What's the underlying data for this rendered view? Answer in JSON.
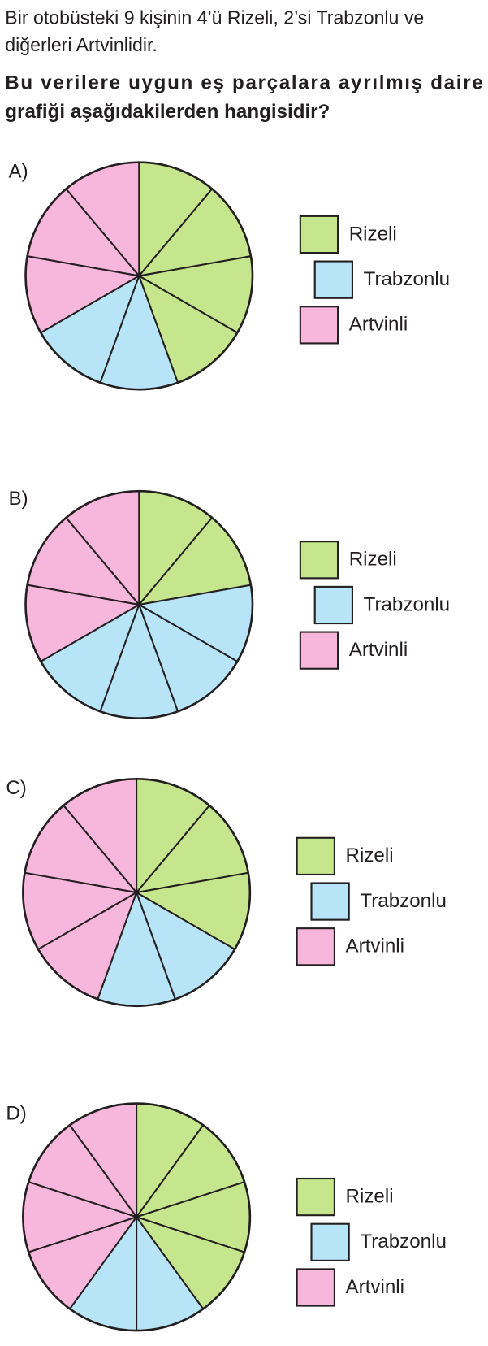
{
  "question": {
    "lines": [
      "Bir otobüsteki 9 kişinin 4’ü Rizeli, 2’si Trabzonlu ve",
      "diğerleri Artvinlidir."
    ],
    "bold_lines": [
      "Bu verilere uygun eş parçalara ayrılmış daire",
      "grafiği aşağıdakilerden hangisidir?"
    ]
  },
  "chart_data": [
    {
      "type": "pie",
      "title": "A)",
      "categories": [
        "Rizeli",
        "Trabzonlu",
        "Artvinli"
      ],
      "values": [
        4,
        2,
        3
      ],
      "colors": [
        "#c5e68c",
        "#b8e4f7",
        "#f7b6dc"
      ]
    },
    {
      "type": "pie",
      "title": "B)",
      "categories": [
        "Rizeli",
        "Trabzonlu",
        "Artvinli"
      ],
      "values": [
        2,
        4,
        3
      ],
      "colors": [
        "#c5e68c",
        "#b8e4f7",
        "#f7b6dc"
      ]
    },
    {
      "type": "pie",
      "title": "C)",
      "categories": [
        "Rizeli",
        "Trabzonlu",
        "Artvinli"
      ],
      "values": [
        3,
        2,
        4
      ],
      "colors": [
        "#c5e68c",
        "#b8e4f7",
        "#f7b6dc"
      ]
    },
    {
      "type": "pie",
      "title": "D)",
      "categories": [
        "Rizeli",
        "Trabzonlu",
        "Artvinli"
      ],
      "values": [
        4,
        2,
        4
      ],
      "colors": [
        "#c5e68c",
        "#b8e4f7",
        "#f7b6dc"
      ]
    }
  ]
}
